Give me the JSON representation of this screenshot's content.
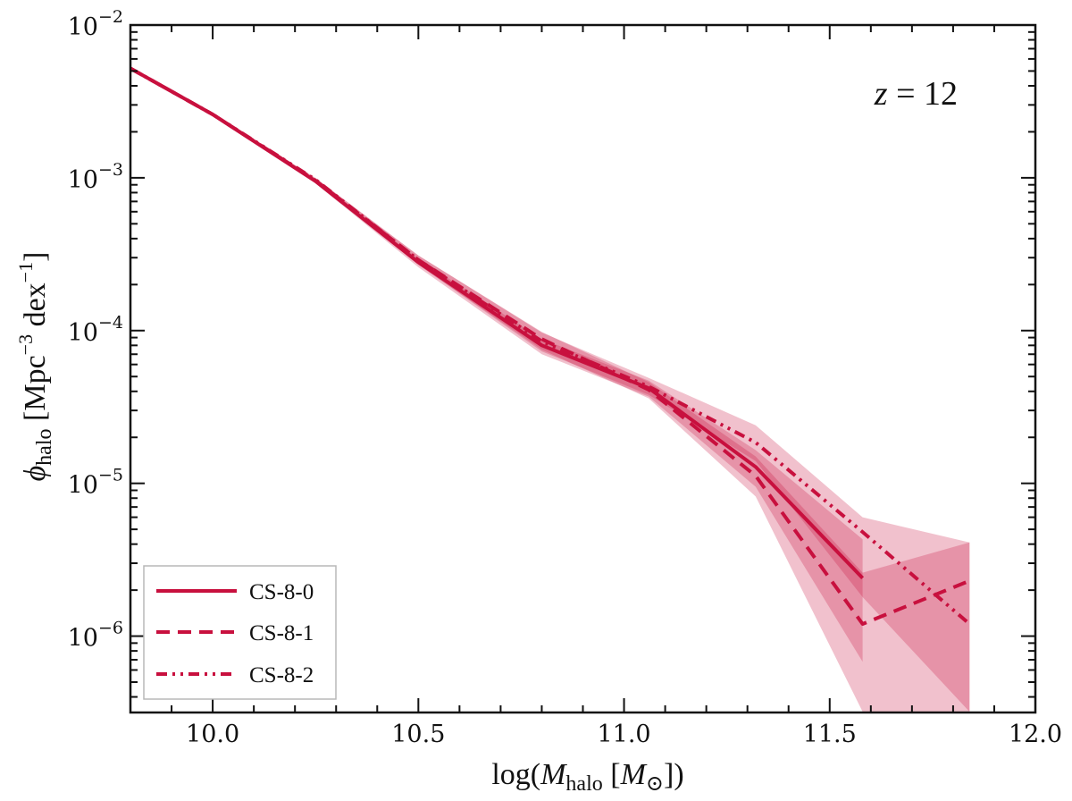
{
  "chart_data": {
    "type": "line",
    "xlabel": {
      "prefix": "log(",
      "var": "M",
      "sub": "halo",
      "unit_open": " [",
      "unit_var": "M",
      "unit_sub": "⊙",
      "suffix": "])"
    },
    "ylabel": {
      "var": "ϕ",
      "sub": "halo",
      "unit": " [Mpc",
      "exp1": "−3",
      "mid": " dex",
      "exp2": "−1",
      "close": "]"
    },
    "annotation": {
      "var": "z",
      "text": " = 12"
    },
    "xlim": [
      9.8,
      12.0
    ],
    "ylim_log10": [
      -6.5,
      -2
    ],
    "y_scale": "log",
    "x_ticks": [
      10.0,
      10.5,
      11.0,
      11.5,
      12.0
    ],
    "x_tick_labels": [
      "10.0",
      "10.5",
      "11.0",
      "11.5",
      "12.0"
    ],
    "y_ticks_log10": [
      -6,
      -5,
      -4,
      -3,
      -2
    ],
    "y_tick_base": "10",
    "y_tick_exponents": [
      "−6",
      "−5",
      "−4",
      "−3",
      "−2"
    ],
    "legend_position": "bottom-left",
    "color": "#c8103e",
    "series": [
      {
        "name": "CS-8-0",
        "style": "solid",
        "x": [
          9.8,
          10.0,
          10.25,
          10.5,
          10.8,
          11.06,
          11.32,
          11.58
        ],
        "y": [
          0.0052,
          0.0026,
          0.00095,
          0.00028,
          8e-05,
          4.2e-05,
          1.28e-05,
          2.4e-06
        ],
        "band_x": [
          9.8,
          10.0,
          10.25,
          10.5,
          10.8,
          11.06,
          11.32,
          11.58
        ],
        "band_low": [
          0.0051,
          0.00255,
          0.00092,
          0.00026,
          7e-05,
          3.7e-05,
          9.5e-06,
          6.8e-07
        ],
        "band_high": [
          0.0053,
          0.00265,
          0.00098,
          0.000295,
          8.8e-05,
          4.7e-05,
          1.65e-05,
          4.3e-06
        ]
      },
      {
        "name": "CS-8-1",
        "style": "dashed",
        "x": [
          9.8,
          10.0,
          10.25,
          10.5,
          10.8,
          11.06,
          11.32,
          11.58,
          11.84
        ],
        "y": [
          0.0052,
          0.0026,
          0.00096,
          0.00029,
          8.8e-05,
          4.1e-05,
          1.12e-05,
          1.2e-06,
          2.3e-06
        ],
        "band_x": [
          9.8,
          10.0,
          10.25,
          10.5,
          10.8,
          11.06,
          11.32,
          11.58,
          11.84
        ],
        "band_low": [
          0.0051,
          0.00255,
          0.00093,
          0.00027,
          7.5e-05,
          3.6e-05,
          8.2e-06,
          3.2e-07,
          3.2e-07
        ],
        "band_high": [
          0.0053,
          0.00265,
          0.00099,
          0.00031,
          9.8e-05,
          4.6e-05,
          1.5e-05,
          2.6e-06,
          4.1e-06
        ]
      },
      {
        "name": "CS-8-2",
        "style": "dashdotdot",
        "x": [
          9.8,
          10.0,
          10.25,
          10.5,
          10.8,
          11.06,
          11.32,
          11.58,
          11.84
        ],
        "y": [
          0.0052,
          0.0026,
          0.00097,
          0.00029,
          8.5e-05,
          4.3e-05,
          1.85e-05,
          4.8e-06,
          1.2e-06
        ],
        "band_x": [
          9.8,
          10.0,
          10.25,
          10.5,
          10.8,
          11.06,
          11.32,
          11.58,
          11.84
        ],
        "band_low": [
          0.0051,
          0.00255,
          0.00094,
          0.00027,
          7.3e-05,
          3.8e-05,
          1.4e-05,
          1.8e-06,
          3.2e-07
        ],
        "band_high": [
          0.0053,
          0.00265,
          0.001,
          0.00031,
          9.7e-05,
          4.9e-05,
          2.4e-05,
          6e-06,
          4.1e-06
        ]
      }
    ]
  }
}
